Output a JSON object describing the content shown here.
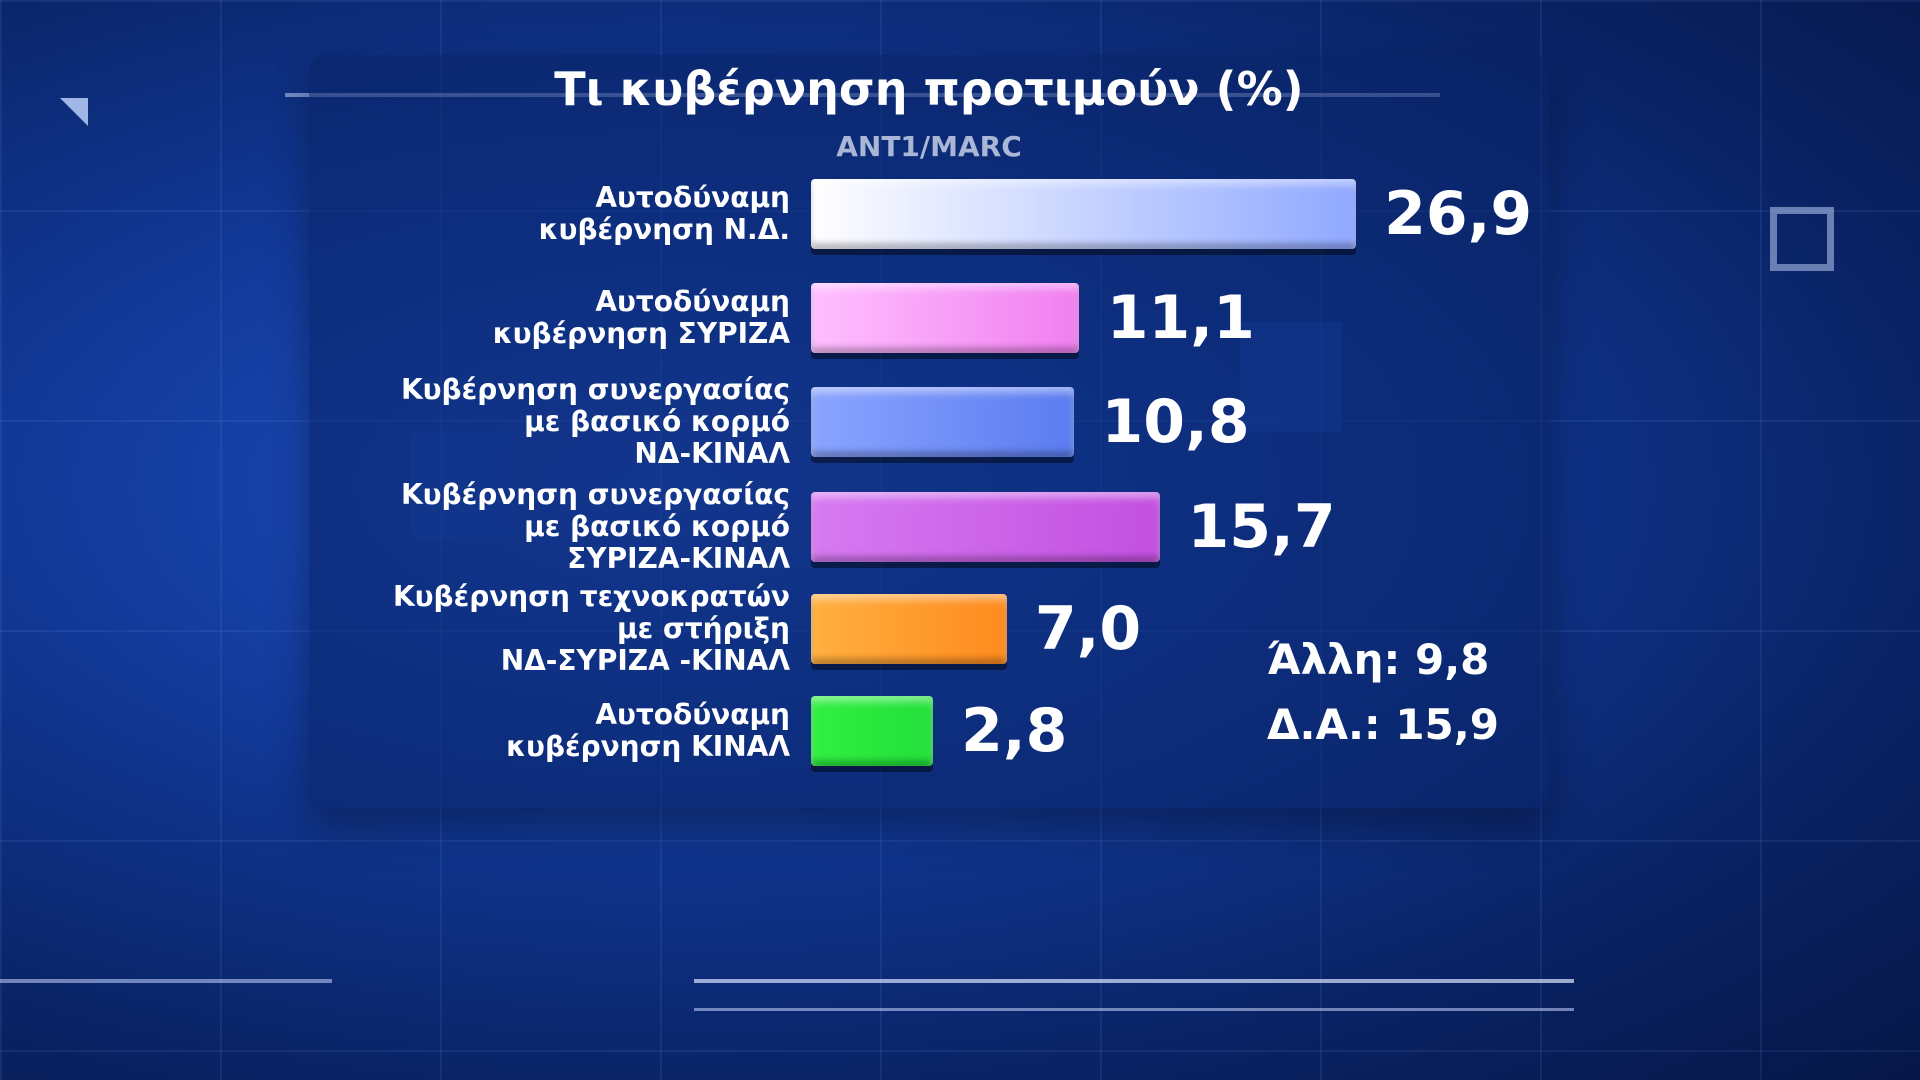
{
  "chart_data": {
    "type": "bar",
    "orientation": "horizontal",
    "title": "Τι κυβέρνηση προτιμούν (%)",
    "subtitle": "ANT1/MARC",
    "categories": [
      "Αυτοδύναμη\nκυβέρνηση Ν.Δ.",
      "Αυτοδύναμη\nκυβέρνηση ΣΥΡΙΖΑ",
      "Κυβέρνηση συνεργασίας\nμε βασικό κορμό\nΝΔ-ΚΙΝΑΛ",
      "Κυβέρνηση συνεργασίας\nμε βασικό κορμό\nΣΥΡΙΖΑ-ΚΙΝΑΛ",
      "Κυβέρνηση τεχνοκρατών\nμε στήριξη\nΝΔ-ΣΥΡΙΖΑ -ΚΙΝΑΛ",
      "Αυτοδύναμη\nκυβέρνηση ΚΙΝΑΛ"
    ],
    "values": [
      26.9,
      11.1,
      10.8,
      15.7,
      7.0,
      2.8
    ],
    "value_labels": [
      "26,9",
      "11,1",
      "10,8",
      "15,7",
      "7,0",
      "2,8"
    ],
    "colors": [
      "#8fa8ff",
      "#f07ef0",
      "#5b7cf0",
      "#c24fe0",
      "#ff8a1e",
      "#22e03a"
    ],
    "gradient_start": [
      "#ffffff",
      "#ffc0ff",
      "#8aa4ff",
      "#d77af2",
      "#ffb040",
      "#30f040"
    ],
    "annotations": [
      "Άλλη: 9,8",
      "Δ.Α.: 15,9"
    ],
    "grid": false,
    "legend": "none"
  }
}
